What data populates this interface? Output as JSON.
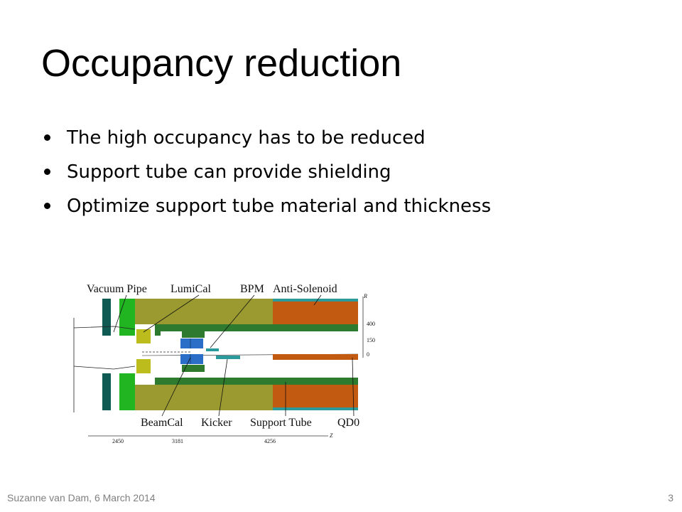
{
  "slide": {
    "title": "Occupancy reduction",
    "bullets": [
      "The high occupancy has to be reduced",
      "Support tube can provide shielding",
      "Optimize support tube material and thickness"
    ]
  },
  "diagram": {
    "labels_top": [
      "Vacuum Pipe",
      "LumiCal",
      "BPM",
      "Anti-Solenoid"
    ],
    "labels_bottom": [
      "BeamCal",
      "Kicker",
      "Support Tube",
      "QD0"
    ],
    "r_axis_label": "R",
    "r_ticks": [
      "400",
      "150",
      "0"
    ],
    "z_axis_label": "Z",
    "z_ticks": [
      "2450",
      "3181",
      "4256"
    ],
    "colors": {
      "dark_teal": "#0f5a52",
      "bright_green": "#22b522",
      "olive": "#9a9a30",
      "dark_green": "#2e7a2e",
      "orange": "#c25a12",
      "teal": "#2a9a9a",
      "yellow_green": "#bcbc1c",
      "blue": "#2a6ec8"
    }
  },
  "footer": {
    "author_date": "Suzanne van Dam, 6 March 2014",
    "page_number": "3"
  }
}
